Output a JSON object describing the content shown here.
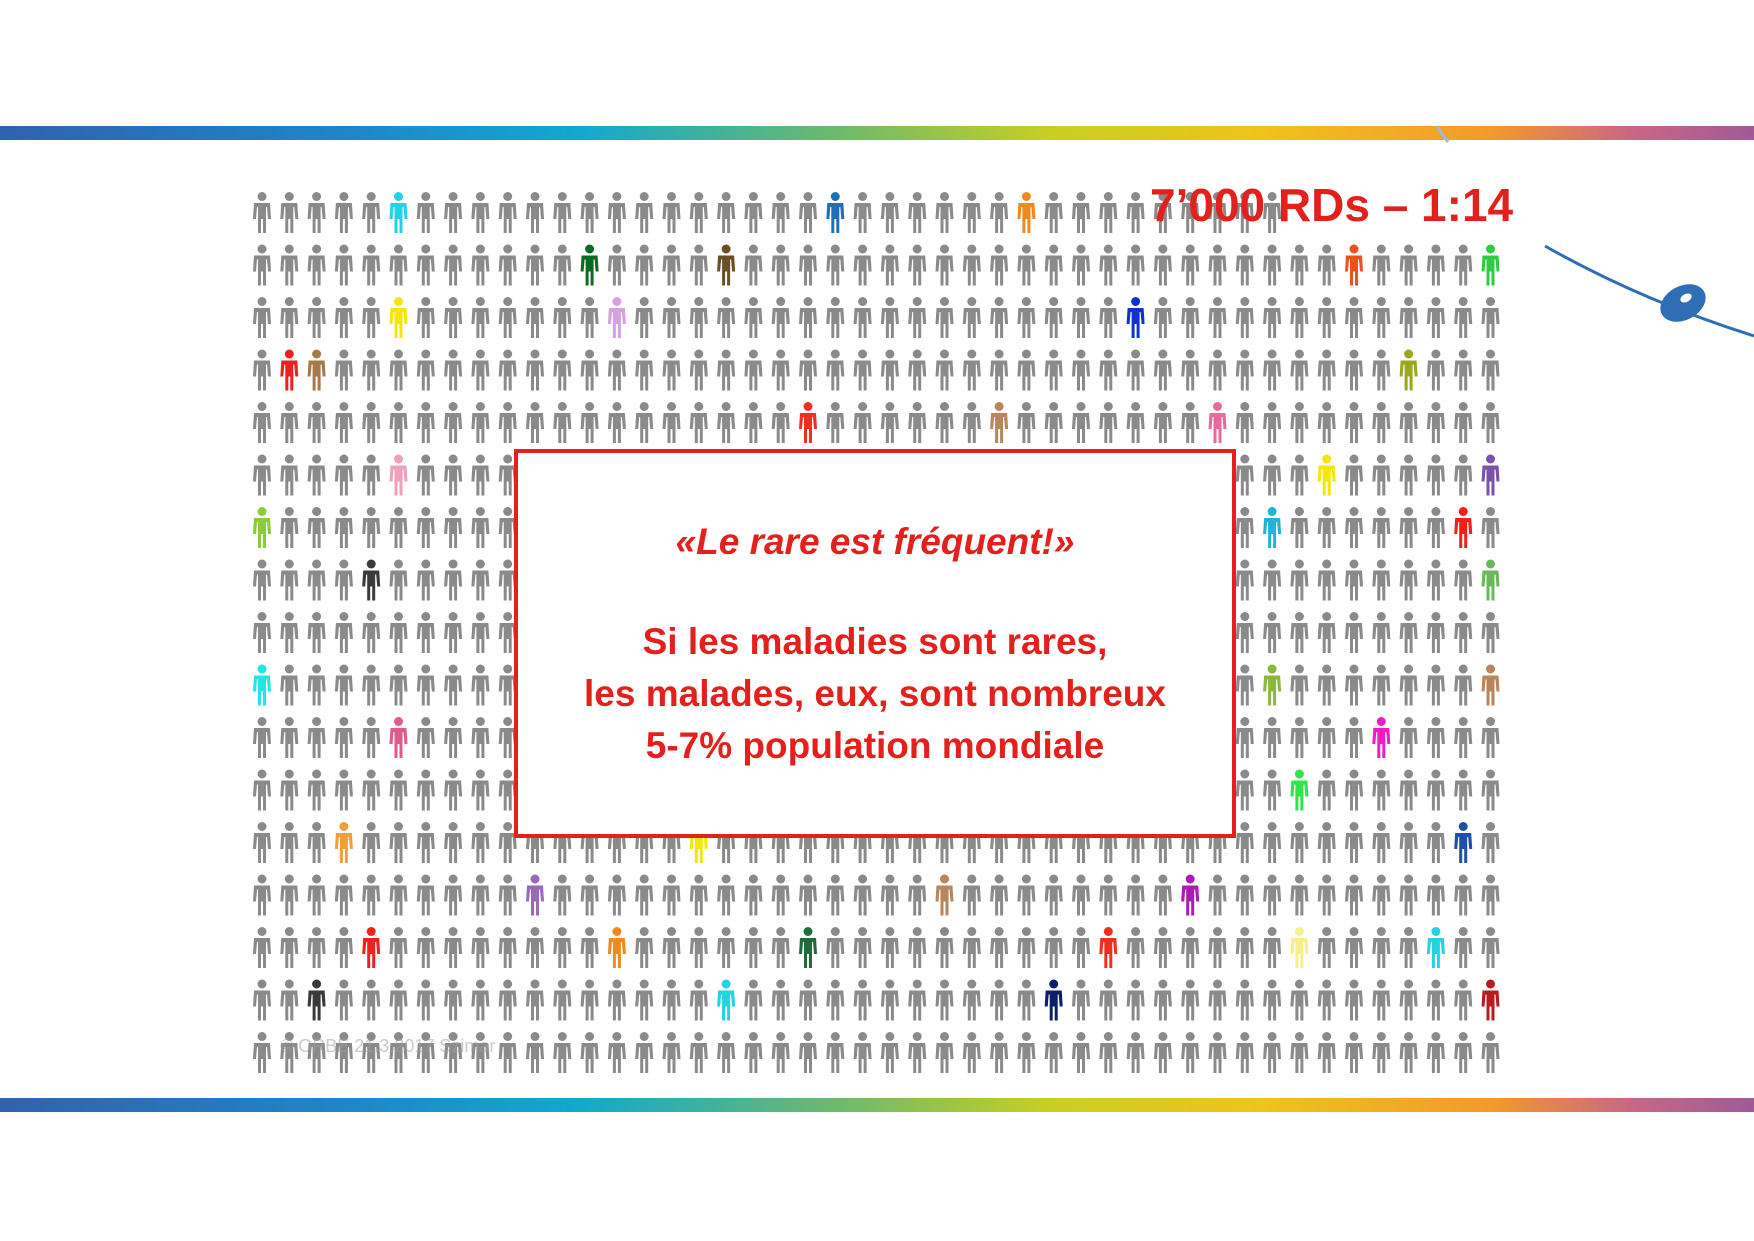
{
  "header": {
    "stat": "7’000 RDs – 1:14"
  },
  "message": {
    "quote": "«Le rare est fréquent!»",
    "lines": [
      "Si les maladies sont rares,",
      "les malades, eux, sont nombreux",
      "5-7% population mondiale"
    ]
  },
  "footer": {
    "watermark": "© ORBE 21.3.2017 Szimar"
  },
  "colors": {
    "accent": "#e4201c",
    "figure_default": "#8a8a8a",
    "arc": "#2f6db5",
    "band": [
      "#2f63ad",
      "#12a8cf",
      "#c8cf22",
      "#f29a2c",
      "#a05a98"
    ]
  },
  "figures": {
    "icon": "person-icon",
    "rows": [
      38,
      46,
      46,
      46,
      46,
      46,
      46,
      46,
      46,
      46,
      46,
      46,
      46,
      46,
      46,
      46,
      46
    ],
    "highlights": [
      {
        "row": 0,
        "col": 5,
        "color": "#22d3e6"
      },
      {
        "row": 0,
        "col": 21,
        "color": "#1f6fb8"
      },
      {
        "row": 0,
        "col": 28,
        "color": "#f08a1c"
      },
      {
        "row": 1,
        "col": 12,
        "color": "#0b6b23"
      },
      {
        "row": 1,
        "col": 17,
        "color": "#6b4e22"
      },
      {
        "row": 1,
        "col": 40,
        "color": "#f0501c"
      },
      {
        "row": 1,
        "col": 45,
        "color": "#2ecc40"
      },
      {
        "row": 2,
        "col": 5,
        "color": "#f5e60a"
      },
      {
        "row": 2,
        "col": 13,
        "color": "#d7a0e0"
      },
      {
        "row": 2,
        "col": 32,
        "color": "#1133cc"
      },
      {
        "row": 3,
        "col": 1,
        "color": "#f0201c"
      },
      {
        "row": 3,
        "col": 2,
        "color": "#a8784a"
      },
      {
        "row": 3,
        "col": 42,
        "color": "#9aa81c"
      },
      {
        "row": 4,
        "col": 20,
        "color": "#f0301c"
      },
      {
        "row": 4,
        "col": 27,
        "color": "#b8865a"
      },
      {
        "row": 4,
        "col": 35,
        "color": "#e86a9a"
      },
      {
        "row": 5,
        "col": 5,
        "color": "#f0a0b8"
      },
      {
        "row": 5,
        "col": 39,
        "color": "#f5e60a"
      },
      {
        "row": 5,
        "col": 45,
        "color": "#7a52a8"
      },
      {
        "row": 6,
        "col": 0,
        "color": "#8acd3a"
      },
      {
        "row": 6,
        "col": 37,
        "color": "#22b3d6"
      },
      {
        "row": 6,
        "col": 44,
        "color": "#f0201c"
      },
      {
        "row": 7,
        "col": 4,
        "color": "#3a3a3a"
      },
      {
        "row": 7,
        "col": 45,
        "color": "#6ab85a"
      },
      {
        "row": 9,
        "col": 0,
        "color": "#22e6e6"
      },
      {
        "row": 9,
        "col": 37,
        "color": "#8ab83a"
      },
      {
        "row": 9,
        "col": 45,
        "color": "#b8865a"
      },
      {
        "row": 10,
        "col": 5,
        "color": "#e05a8a"
      },
      {
        "row": 10,
        "col": 41,
        "color": "#f01cc8"
      },
      {
        "row": 11,
        "col": 21,
        "color": "#22b3d6"
      },
      {
        "row": 11,
        "col": 26,
        "color": "#22d3e6"
      },
      {
        "row": 11,
        "col": 31,
        "color": "#1f8fd6"
      },
      {
        "row": 11,
        "col": 38,
        "color": "#2ee64a"
      },
      {
        "row": 12,
        "col": 3,
        "color": "#f0a03a"
      },
      {
        "row": 12,
        "col": 16,
        "color": "#f5e60a"
      },
      {
        "row": 12,
        "col": 44,
        "color": "#1f4fa8"
      },
      {
        "row": 13,
        "col": 10,
        "color": "#9a6ab8"
      },
      {
        "row": 13,
        "col": 25,
        "color": "#b8865a"
      },
      {
        "row": 13,
        "col": 34,
        "color": "#a81cb8"
      },
      {
        "row": 14,
        "col": 4,
        "color": "#f0201c"
      },
      {
        "row": 14,
        "col": 13,
        "color": "#f08a1c"
      },
      {
        "row": 14,
        "col": 20,
        "color": "#1f6b3a"
      },
      {
        "row": 14,
        "col": 31,
        "color": "#f0301c"
      },
      {
        "row": 14,
        "col": 38,
        "color": "#f5f08a"
      },
      {
        "row": 14,
        "col": 43,
        "color": "#22d3e6"
      },
      {
        "row": 15,
        "col": 2,
        "color": "#3a3a3a"
      },
      {
        "row": 15,
        "col": 17,
        "color": "#22d3e6"
      },
      {
        "row": 15,
        "col": 29,
        "color": "#0b1f6b"
      },
      {
        "row": 15,
        "col": 45,
        "color": "#b81c1c"
      }
    ]
  }
}
